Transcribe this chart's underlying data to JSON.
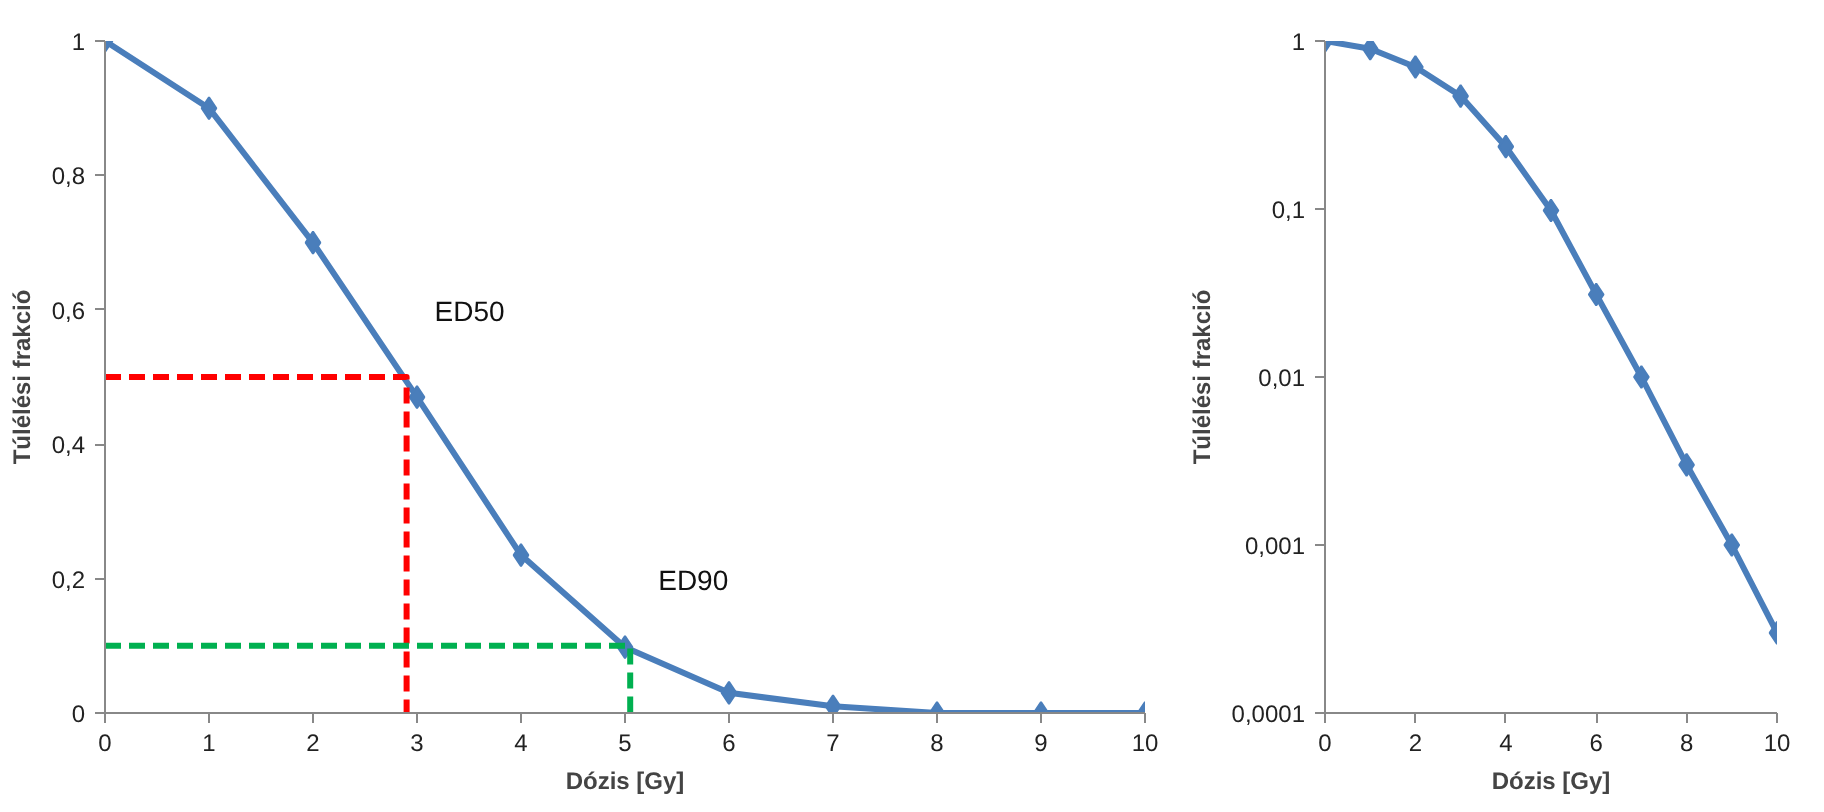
{
  "chart_data": [
    {
      "type": "line",
      "xlabel": "Dózis [Gy]",
      "ylabel": "Túlélési frakció",
      "x": [
        0,
        1,
        2,
        3,
        4,
        5,
        6,
        7,
        8,
        9,
        10
      ],
      "marker": "diamond",
      "line_style": "solid",
      "grid": false,
      "series": [
        {
          "color": "#4a7ebb",
          "values": [
            1,
            0.9,
            0.7,
            0.47,
            0.235,
            0.098,
            0.03,
            0.01,
            0,
            0,
            0
          ]
        },
        {
          "color": "#ff0000",
          "x": [
            0,
            2.9,
            2.9
          ],
          "values": [
            0.5,
            0.5,
            0
          ],
          "marker": "none",
          "line_style": "dashed"
        },
        {
          "color": "#00b050",
          "x": [
            0,
            5.05,
            5.05
          ],
          "values": [
            0.1,
            0.1,
            0
          ],
          "marker": "none",
          "line_style": "dashed"
        }
      ],
      "xlim": [
        0,
        10
      ],
      "ylim": [
        0,
        1
      ],
      "xticks": [
        0,
        1,
        2,
        3,
        4,
        5,
        6,
        7,
        8,
        9,
        10
      ],
      "yticks": [
        {
          "value": 0,
          "label": "0"
        },
        {
          "value": 0.2,
          "label": "0,2"
        },
        {
          "value": 0.4,
          "label": "0,4"
        },
        {
          "value": 0.6,
          "label": "0,6"
        },
        {
          "value": 0.8,
          "label": "0,8"
        },
        {
          "value": 1,
          "label": "1"
        }
      ],
      "annotations": [
        {
          "text": "ED50",
          "x": 2.9,
          "y": 0.5
        },
        {
          "text": "ED90",
          "x": 5.05,
          "y": 0.1
        }
      ]
    },
    {
      "type": "line",
      "xlabel": "Dózis [Gy]",
      "ylabel": "Túlélési frakció",
      "x": [
        0,
        1,
        2,
        3,
        4,
        5,
        6,
        7,
        8,
        9,
        10
      ],
      "marker": "diamond",
      "line_style": "solid",
      "grid": false,
      "log": "y",
      "series": [
        {
          "color": "#4a7ebb",
          "values": [
            1,
            0.9,
            0.7,
            0.47,
            0.235,
            0.098,
            0.031,
            0.01,
            0.003,
            0.001,
            0.0003
          ]
        }
      ],
      "xlim": [
        0,
        10
      ],
      "ylim": [
        0.0001,
        1
      ],
      "xticks": [
        0,
        2,
        4,
        6,
        8,
        10
      ],
      "yticks": [
        {
          "value": 0.0001,
          "label": "0,0001"
        },
        {
          "value": 0.001,
          "label": "0,001"
        },
        {
          "value": 0.01,
          "label": "0,01"
        },
        {
          "value": 0.1,
          "label": "0,1"
        },
        {
          "value": 1,
          "label": "1"
        }
      ]
    }
  ]
}
